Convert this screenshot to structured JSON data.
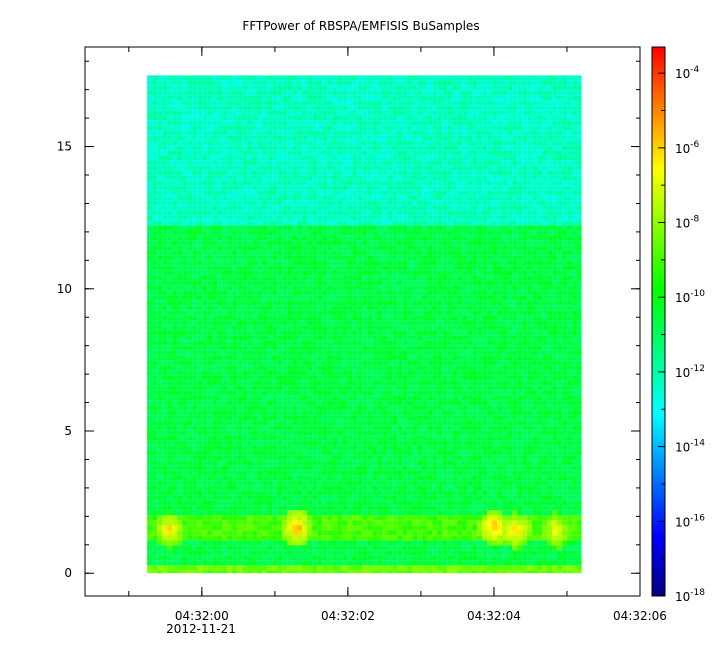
{
  "chart_data": {
    "type": "heatmap",
    "title": "FFTPower of RBSPA/EMFISIS  BuSamples",
    "xlabel": "",
    "ylabel": "",
    "x_axis": {
      "ticks": [
        {
          "value": "04:32:00",
          "offset_s": 0
        },
        {
          "value": "04:32:02",
          "offset_s": 2
        },
        {
          "value": "04:32:04",
          "offset_s": 4
        },
        {
          "value": "04:32:06",
          "offset_s": 6
        }
      ],
      "date_label": "2012-11-21",
      "range_s": [
        -1.6,
        6.0
      ],
      "minor_step_s": 1
    },
    "y_axis": {
      "ticks": [
        0,
        5,
        10,
        15
      ],
      "range": [
        -0.8,
        18.5
      ]
    },
    "colorbar": {
      "scale": "log",
      "tick_exponents": [
        -4,
        -6,
        -8,
        -10,
        -12,
        -14,
        -16,
        -18
      ],
      "tick_base": "10",
      "range_exp": [
        -18,
        -3.3
      ],
      "colors": [
        "#000080",
        "#0000ff",
        "#0080ff",
        "#00ffff",
        "#00ff80",
        "#00ff00",
        "#80ff00",
        "#ffff00",
        "#ff8000",
        "#ff0000"
      ]
    },
    "data_extent": {
      "x_s": [
        -0.75,
        5.2
      ],
      "y": [
        0,
        17.5
      ]
    },
    "regions": [
      {
        "y": [
          12.3,
          17.5
        ],
        "level_exp": -12.3,
        "description": "upper band"
      },
      {
        "y": [
          2.0,
          12.3
        ],
        "level_exp": -10.7,
        "description": "middle band"
      },
      {
        "y": [
          1.1,
          2.0
        ],
        "level_exp": -9.0,
        "description": "low-frequency emission band"
      },
      {
        "y": [
          0,
          0.2
        ],
        "level_exp": -8.5,
        "description": "bottom edge"
      }
    ],
    "bursts": [
      {
        "x_s": -0.45,
        "y": 1.5,
        "level_exp": -6.0
      },
      {
        "x_s": 1.3,
        "y": 1.6,
        "level_exp": -5.5
      },
      {
        "x_s": 4.0,
        "y": 1.6,
        "level_exp": -5.5
      },
      {
        "x_s": 4.3,
        "y": 1.5,
        "level_exp": -5.8
      },
      {
        "x_s": 4.85,
        "y": 1.5,
        "level_exp": -6.3
      }
    ]
  }
}
